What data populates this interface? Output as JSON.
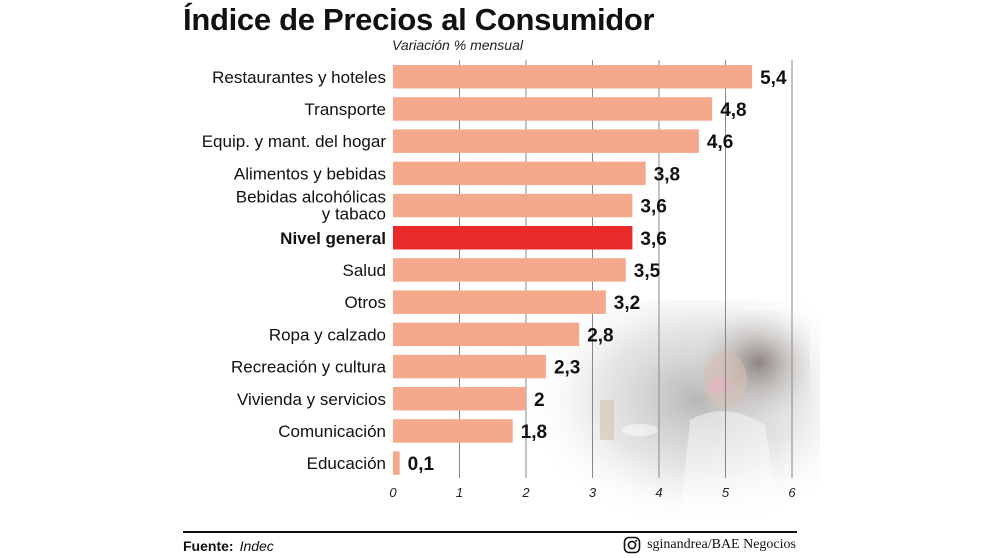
{
  "header": {
    "title": "Índice de Precios al Consumidor",
    "subtitle": "Variación % mensual"
  },
  "footer": {
    "source_label": "Fuente:",
    "source_value": "Indec",
    "credit": "sginandrea/BAE Negocios",
    "credit_icon": "instagram-icon"
  },
  "colors": {
    "bar": "#f4a98c",
    "highlight": "#e82a2a",
    "gridline": "#888888",
    "text": "#111111"
  },
  "chart_data": {
    "type": "bar",
    "orientation": "horizontal",
    "title": "Índice de Precios al Consumidor",
    "subtitle": "Variación % mensual",
    "categories": [
      "Restaurantes y hoteles",
      "Transporte",
      "Equip. y mant. del hogar",
      "Alimentos y bebidas",
      "Bebidas alcohólicas y tabaco",
      "Nivel general",
      "Salud",
      "Otros",
      "Ropa y calzado",
      "Recreación y cultura",
      "Vivienda y servicios",
      "Comunicación",
      "Educación"
    ],
    "category_lines": [
      [
        "Restaurantes y hoteles"
      ],
      [
        "Transporte"
      ],
      [
        "Equip. y mant. del hogar"
      ],
      [
        "Alimentos y bebidas"
      ],
      [
        "Bebidas alcohólicas",
        "y tabaco"
      ],
      [
        "Nivel general"
      ],
      [
        "Salud"
      ],
      [
        "Otros"
      ],
      [
        "Ropa y calzado"
      ],
      [
        "Recreación y cultura"
      ],
      [
        "Vivienda y servicios"
      ],
      [
        "Comunicación"
      ],
      [
        "Educación"
      ]
    ],
    "values": [
      5.4,
      4.8,
      4.6,
      3.8,
      3.6,
      3.6,
      3.5,
      3.2,
      2.8,
      2.3,
      2,
      1.8,
      0.1
    ],
    "value_labels": [
      "5,4",
      "4,8",
      "4,6",
      "3,8",
      "3,6",
      "3,6",
      "3,5",
      "3,2",
      "2,8",
      "2,3",
      "2",
      "1,8",
      "0,1"
    ],
    "highlight_category": "Nivel general",
    "xlim": [
      0,
      6
    ],
    "xticks": [
      0,
      1,
      2,
      3,
      4,
      5,
      6
    ],
    "xtick_labels": [
      "0",
      "1",
      "2",
      "3",
      "4",
      "5",
      "6"
    ],
    "grid": true
  }
}
